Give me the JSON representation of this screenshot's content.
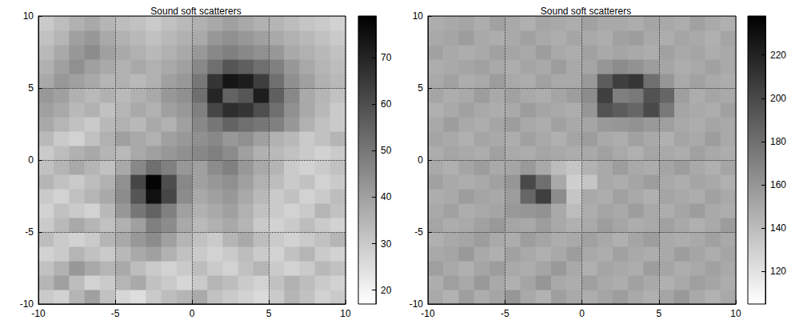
{
  "chart_data": [
    {
      "type": "heatmap",
      "title": "Sound soft scatterers",
      "x": [
        -9.5,
        -8.5,
        -7.5,
        -6.5,
        -5.5,
        -4.5,
        -3.5,
        -2.5,
        -1.5,
        -0.5,
        0.5,
        1.5,
        2.5,
        3.5,
        4.5,
        5.5,
        6.5,
        7.5,
        8.5,
        9.5
      ],
      "y": [
        -9.5,
        -8.5,
        -7.5,
        -6.5,
        -5.5,
        -4.5,
        -3.5,
        -2.5,
        -1.5,
        -0.5,
        0.5,
        1.5,
        2.5,
        3.5,
        4.5,
        5.5,
        6.5,
        7.5,
        8.5,
        9.5
      ],
      "values": [
        [
          30,
          28,
          35,
          40,
          32,
          27,
          25,
          30,
          33,
          35,
          38,
          32,
          30,
          28,
          26,
          30,
          35,
          32,
          28,
          30
        ],
        [
          35,
          40,
          33,
          28,
          30,
          35,
          38,
          32,
          30,
          27,
          30,
          35,
          33,
          30,
          28,
          32,
          36,
          33,
          30,
          28
        ],
        [
          32,
          36,
          42,
          38,
          35,
          38,
          33,
          30,
          28,
          30,
          33,
          30,
          28,
          32,
          35,
          30,
          28,
          30,
          34,
          32
        ],
        [
          28,
          30,
          35,
          32,
          30,
          34,
          38,
          40,
          36,
          32,
          30,
          28,
          30,
          33,
          30,
          28,
          32,
          35,
          30,
          28
        ],
        [
          33,
          30,
          28,
          30,
          35,
          38,
          42,
          45,
          40,
          35,
          32,
          30,
          35,
          38,
          33,
          30,
          28,
          30,
          32,
          35
        ],
        [
          30,
          34,
          38,
          35,
          32,
          36,
          40,
          48,
          45,
          38,
          34,
          36,
          38,
          35,
          30,
          28,
          30,
          33,
          30,
          28
        ],
        [
          28,
          32,
          30,
          28,
          34,
          42,
          50,
          55,
          48,
          40,
          36,
          38,
          40,
          36,
          32,
          30,
          28,
          30,
          35,
          32
        ],
        [
          30,
          28,
          32,
          35,
          38,
          45,
          58,
          75,
          62,
          45,
          38,
          40,
          42,
          38,
          34,
          30,
          32,
          28,
          30,
          33
        ],
        [
          35,
          32,
          30,
          33,
          36,
          44,
          62,
          78,
          60,
          46,
          40,
          42,
          44,
          40,
          36,
          33,
          30,
          32,
          28,
          30
        ],
        [
          32,
          35,
          38,
          35,
          32,
          38,
          46,
          52,
          48,
          42,
          40,
          45,
          48,
          42,
          38,
          35,
          30,
          28,
          30,
          32
        ],
        [
          30,
          33,
          36,
          38,
          35,
          34,
          38,
          40,
          42,
          44,
          46,
          48,
          45,
          40,
          36,
          34,
          32,
          30,
          28,
          30
        ],
        [
          34,
          30,
          28,
          32,
          36,
          40,
          38,
          36,
          40,
          42,
          44,
          46,
          42,
          44,
          40,
          36,
          34,
          30,
          32,
          35
        ],
        [
          38,
          35,
          32,
          30,
          34,
          36,
          34,
          38,
          36,
          40,
          46,
          50,
          55,
          52,
          50,
          48,
          42,
          36,
          32,
          30
        ],
        [
          40,
          38,
          34,
          36,
          32,
          35,
          38,
          36,
          40,
          42,
          48,
          62,
          68,
          66,
          60,
          52,
          44,
          38,
          34,
          30
        ],
        [
          42,
          40,
          36,
          34,
          36,
          34,
          36,
          38,
          42,
          44,
          52,
          70,
          55,
          58,
          72,
          56,
          46,
          38,
          35,
          32
        ],
        [
          38,
          42,
          40,
          38,
          35,
          36,
          34,
          36,
          40,
          42,
          50,
          66,
          74,
          72,
          64,
          52,
          44,
          40,
          36,
          34
        ],
        [
          36,
          40,
          44,
          40,
          38,
          36,
          38,
          36,
          38,
          40,
          46,
          52,
          58,
          56,
          52,
          48,
          42,
          38,
          35,
          33
        ],
        [
          34,
          38,
          42,
          45,
          40,
          38,
          36,
          34,
          36,
          38,
          42,
          46,
          48,
          46,
          44,
          42,
          38,
          36,
          34,
          32
        ],
        [
          32,
          35,
          40,
          42,
          38,
          36,
          34,
          32,
          34,
          36,
          38,
          42,
          44,
          42,
          40,
          38,
          36,
          34,
          32,
          30
        ],
        [
          30,
          33,
          36,
          38,
          35,
          33,
          32,
          30,
          32,
          34,
          36,
          38,
          40,
          38,
          36,
          35,
          33,
          31,
          30,
          28
        ]
      ],
      "xlim": [
        -10,
        10
      ],
      "ylim": [
        -10,
        10
      ],
      "xticks": [
        -10,
        -5,
        0,
        5,
        10
      ],
      "yticks": [
        -10,
        -5,
        0,
        5,
        10
      ],
      "grid": true,
      "colorbar_range": [
        17,
        79
      ],
      "colorbar_ticks": [
        20,
        30,
        40,
        50,
        60,
        70
      ]
    },
    {
      "type": "heatmap",
      "title": "Sound soft scatterers",
      "x": [
        -9.5,
        -8.5,
        -7.5,
        -6.5,
        -5.5,
        -4.5,
        -3.5,
        -2.5,
        -1.5,
        -0.5,
        0.5,
        1.5,
        2.5,
        3.5,
        4.5,
        5.5,
        6.5,
        7.5,
        8.5,
        9.5
      ],
      "y": [
        -9.5,
        -8.5,
        -7.5,
        -6.5,
        -5.5,
        -4.5,
        -3.5,
        -2.5,
        -1.5,
        -0.5,
        0.5,
        1.5,
        2.5,
        3.5,
        4.5,
        5.5,
        6.5,
        7.5,
        8.5,
        9.5
      ],
      "values": [
        [
          150,
          145,
          155,
          148,
          152,
          160,
          150,
          145,
          155,
          150,
          148,
          152,
          156,
          150,
          146,
          152,
          158,
          150,
          145,
          150
        ],
        [
          148,
          155,
          150,
          158,
          150,
          146,
          152,
          160,
          150,
          148,
          155,
          150,
          148,
          154,
          150,
          146,
          150,
          155,
          152,
          148
        ],
        [
          155,
          150,
          146,
          152,
          156,
          150,
          148,
          152,
          158,
          150,
          146,
          152,
          150,
          148,
          156,
          152,
          148,
          150,
          154,
          150
        ],
        [
          150,
          152,
          158,
          150,
          146,
          154,
          150,
          146,
          150,
          156,
          150,
          148,
          154,
          150,
          148,
          150,
          156,
          152,
          148,
          152
        ],
        [
          146,
          150,
          152,
          156,
          150,
          148,
          156,
          152,
          148,
          150,
          154,
          150,
          146,
          152,
          156,
          150,
          148,
          150,
          154,
          150
        ],
        [
          152,
          148,
          150,
          154,
          158,
          152,
          150,
          156,
          150,
          146,
          150,
          156,
          152,
          148,
          150,
          154,
          150,
          146,
          150,
          156
        ],
        [
          150,
          154,
          148,
          150,
          152,
          158,
          160,
          162,
          150,
          140,
          148,
          152,
          150,
          156,
          150,
          148,
          152,
          156,
          150,
          148
        ],
        [
          148,
          150,
          156,
          152,
          150,
          156,
          185,
          205,
          165,
          135,
          150,
          148,
          154,
          150,
          146,
          152,
          150,
          148,
          154,
          150
        ],
        [
          154,
          150,
          148,
          150,
          154,
          160,
          200,
          180,
          150,
          130,
          135,
          150,
          148,
          152,
          156,
          150,
          148,
          152,
          150,
          146
        ],
        [
          150,
          146,
          152,
          156,
          150,
          152,
          158,
          150,
          140,
          135,
          145,
          150,
          156,
          150,
          148,
          152,
          156,
          150,
          146,
          152
        ],
        [
          148,
          152,
          150,
          148,
          154,
          150,
          148,
          152,
          150,
          148,
          150,
          154,
          150,
          146,
          152,
          150,
          148,
          154,
          150,
          148
        ],
        [
          152,
          150,
          146,
          152,
          150,
          148,
          154,
          150,
          146,
          152,
          156,
          150,
          148,
          154,
          150,
          146,
          152,
          150,
          156,
          150
        ],
        [
          150,
          156,
          150,
          148,
          152,
          156,
          150,
          148,
          154,
          150,
          152,
          158,
          160,
          162,
          158,
          155,
          150,
          148,
          152,
          150
        ],
        [
          146,
          150,
          154,
          150,
          148,
          150,
          156,
          152,
          150,
          148,
          160,
          195,
          190,
          185,
          200,
          175,
          152,
          150,
          148,
          154
        ],
        [
          152,
          148,
          150,
          156,
          150,
          154,
          150,
          148,
          152,
          156,
          165,
          205,
          172,
          175,
          195,
          185,
          155,
          148,
          152,
          150
        ],
        [
          150,
          154,
          148,
          150,
          156,
          150,
          148,
          154,
          150,
          150,
          158,
          190,
          205,
          210,
          180,
          160,
          150,
          154,
          150,
          148
        ],
        [
          148,
          150,
          152,
          154,
          150,
          148,
          152,
          150,
          156,
          150,
          152,
          160,
          165,
          162,
          156,
          152,
          148,
          150,
          154,
          150
        ],
        [
          154,
          150,
          148,
          150,
          154,
          152,
          150,
          156,
          150,
          148,
          154,
          150,
          152,
          150,
          148,
          154,
          150,
          152,
          148,
          150
        ],
        [
          150,
          152,
          156,
          150,
          148,
          150,
          154,
          150,
          148,
          152,
          150,
          148,
          154,
          156,
          150,
          148,
          152,
          150,
          146,
          152
        ],
        [
          148,
          150,
          152,
          148,
          154,
          150,
          146,
          152,
          150,
          148,
          154,
          150,
          150,
          148,
          152,
          150,
          148,
          154,
          150,
          146
        ]
      ],
      "xlim": [
        -10,
        10
      ],
      "ylim": [
        -10,
        10
      ],
      "xticks": [
        -10,
        -5,
        0,
        5,
        10
      ],
      "yticks": [
        -10,
        -5,
        0,
        5,
        10
      ],
      "grid": true,
      "colorbar_range": [
        105,
        238
      ],
      "colorbar_ticks": [
        120,
        140,
        160,
        180,
        200,
        220
      ]
    }
  ]
}
